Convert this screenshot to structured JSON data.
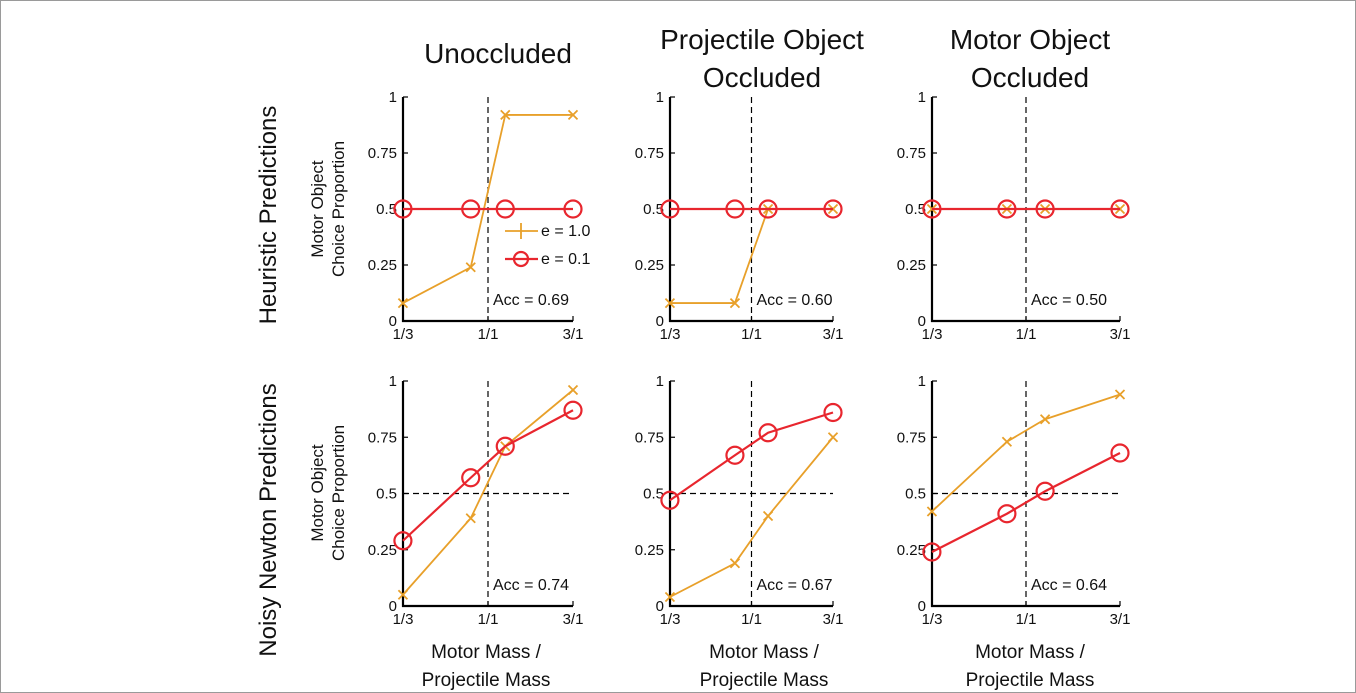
{
  "figure": {
    "col_titles": [
      [
        "Unoccluded"
      ],
      [
        "Projectile Object",
        "Occluded"
      ],
      [
        "Motor Object",
        "Occluded"
      ]
    ],
    "row_titles": [
      "Heuristic Predictions",
      "Noisy Newton Predictions"
    ],
    "ylabel": [
      "Motor Object",
      "Choice Proportion"
    ],
    "xlabel": [
      "Motor Mass /",
      "Projectile Mass"
    ],
    "legend": [
      {
        "label": "e = 1.0",
        "marker": "x",
        "color": "#E8A02A"
      },
      {
        "label": "e = 0.1",
        "marker": "o",
        "color": "#E8262E"
      }
    ]
  },
  "colors": {
    "e10": "#E8A02A",
    "e01": "#E8262E",
    "axis": "#000000"
  },
  "chart_data": [
    {
      "type": "line",
      "row": "Heuristic Predictions",
      "col": "Unoccluded",
      "categories": [
        "1/3",
        "1/1",
        "3/1"
      ],
      "x": [
        0.333,
        0.8,
        1.25,
        3.0
      ],
      "xscale": "log",
      "ylim": [
        0,
        1
      ],
      "yticks": [
        "0",
        "0.25",
        "0.5",
        "0.75",
        "1"
      ],
      "series": [
        {
          "name": "e = 1.0",
          "values": [
            0.08,
            0.24,
            0.92,
            0.92
          ]
        },
        {
          "name": "e = 0.1",
          "values": [
            0.5,
            0.5,
            0.5,
            0.5
          ]
        }
      ],
      "annotation": "Acc = 0.69"
    },
    {
      "type": "line",
      "row": "Heuristic Predictions",
      "col": "Projectile Object Occluded",
      "categories": [
        "1/3",
        "1/1",
        "3/1"
      ],
      "x": [
        0.333,
        0.8,
        1.25,
        3.0
      ],
      "xscale": "log",
      "ylim": [
        0,
        1
      ],
      "yticks": [
        "0",
        "0.25",
        "0.5",
        "0.75",
        "1"
      ],
      "series": [
        {
          "name": "e = 1.0",
          "values": [
            0.08,
            0.08,
            0.5,
            0.5
          ]
        },
        {
          "name": "e = 0.1",
          "values": [
            0.5,
            0.5,
            0.5,
            0.5
          ]
        }
      ],
      "annotation": "Acc = 0.60"
    },
    {
      "type": "line",
      "row": "Heuristic Predictions",
      "col": "Motor Object Occluded",
      "categories": [
        "1/3",
        "1/1",
        "3/1"
      ],
      "x": [
        0.333,
        0.8,
        1.25,
        3.0
      ],
      "xscale": "log",
      "ylim": [
        0,
        1
      ],
      "yticks": [
        "0",
        "0.25",
        "0.5",
        "0.75",
        "1"
      ],
      "series": [
        {
          "name": "e = 1.0",
          "values": [
            0.5,
            0.5,
            0.5,
            0.5
          ]
        },
        {
          "name": "e = 0.1",
          "values": [
            0.5,
            0.5,
            0.5,
            0.5
          ]
        }
      ],
      "annotation": "Acc = 0.50"
    },
    {
      "type": "line",
      "row": "Noisy Newton Predictions",
      "col": "Unoccluded",
      "categories": [
        "1/3",
        "1/1",
        "3/1"
      ],
      "x": [
        0.333,
        0.8,
        1.25,
        3.0
      ],
      "xscale": "log",
      "ylim": [
        0,
        1
      ],
      "yticks": [
        "0",
        "0.25",
        "0.5",
        "0.75",
        "1"
      ],
      "series": [
        {
          "name": "e = 1.0",
          "values": [
            0.05,
            0.39,
            0.71,
            0.96
          ]
        },
        {
          "name": "e = 0.1",
          "values": [
            0.29,
            0.57,
            0.71,
            0.87
          ]
        }
      ],
      "annotation": "Acc = 0.74"
    },
    {
      "type": "line",
      "row": "Noisy Newton Predictions",
      "col": "Projectile Object Occluded",
      "categories": [
        "1/3",
        "1/1",
        "3/1"
      ],
      "x": [
        0.333,
        0.8,
        1.25,
        3.0
      ],
      "xscale": "log",
      "ylim": [
        0,
        1
      ],
      "yticks": [
        "0",
        "0.25",
        "0.5",
        "0.75",
        "1"
      ],
      "series": [
        {
          "name": "e = 1.0",
          "values": [
            0.04,
            0.19,
            0.4,
            0.75
          ]
        },
        {
          "name": "e = 0.1",
          "values": [
            0.47,
            0.67,
            0.77,
            0.86
          ]
        }
      ],
      "annotation": "Acc = 0.67"
    },
    {
      "type": "line",
      "row": "Noisy Newton Predictions",
      "col": "Motor Object Occluded",
      "categories": [
        "1/3",
        "1/1",
        "3/1"
      ],
      "x": [
        0.333,
        0.8,
        1.25,
        3.0
      ],
      "xscale": "log",
      "ylim": [
        0,
        1
      ],
      "yticks": [
        "0",
        "0.25",
        "0.5",
        "0.75",
        "1"
      ],
      "series": [
        {
          "name": "e = 1.0",
          "values": [
            0.42,
            0.73,
            0.83,
            0.94
          ]
        },
        {
          "name": "e = 0.1",
          "values": [
            0.24,
            0.41,
            0.51,
            0.68
          ]
        }
      ],
      "annotation": "Acc = 0.64"
    }
  ]
}
